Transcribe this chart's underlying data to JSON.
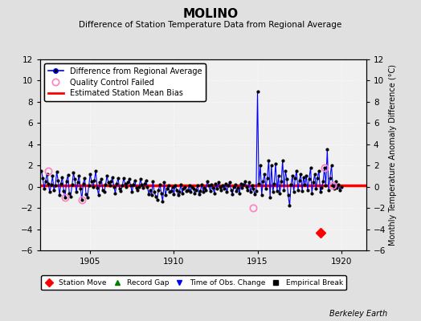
{
  "title": "MOLINO",
  "subtitle": "Difference of Station Temperature Data from Regional Average",
  "ylabel_right": "Monthly Temperature Anomaly Difference (°C)",
  "xlim": [
    1902.0,
    1921.5
  ],
  "ylim": [
    -6,
    12
  ],
  "yticks": [
    -6,
    -4,
    -2,
    0,
    2,
    4,
    6,
    8,
    10,
    12
  ],
  "xticks": [
    1905,
    1910,
    1915,
    1920
  ],
  "bias_line_y": 0.1,
  "station_move_x": 1918.75,
  "station_move_y": -4.3,
  "quality_control_failed": [
    [
      1902.5,
      1.5
    ],
    [
      1903.5,
      -1.0
    ],
    [
      1904.5,
      -1.2
    ],
    [
      1914.75,
      -2.0
    ],
    [
      1919.0,
      1.8
    ],
    [
      1919.5,
      0.1
    ]
  ],
  "time_series_x": [
    1902.08,
    1902.17,
    1902.25,
    1902.33,
    1902.42,
    1902.5,
    1902.58,
    1902.67,
    1902.75,
    1902.83,
    1902.92,
    1903.0,
    1903.08,
    1903.17,
    1903.25,
    1903.33,
    1903.42,
    1903.5,
    1903.58,
    1903.67,
    1903.75,
    1903.83,
    1903.92,
    1904.0,
    1904.08,
    1904.17,
    1904.25,
    1904.33,
    1904.42,
    1904.5,
    1904.58,
    1904.67,
    1904.75,
    1904.83,
    1904.92,
    1905.0,
    1905.08,
    1905.17,
    1905.25,
    1905.33,
    1905.42,
    1905.5,
    1905.58,
    1905.67,
    1905.75,
    1905.83,
    1905.92,
    1906.0,
    1906.08,
    1906.17,
    1906.25,
    1906.33,
    1906.42,
    1906.5,
    1906.58,
    1906.67,
    1906.75,
    1906.83,
    1906.92,
    1907.0,
    1907.08,
    1907.17,
    1907.25,
    1907.33,
    1907.42,
    1907.5,
    1907.58,
    1907.67,
    1907.75,
    1907.83,
    1907.92,
    1908.0,
    1908.08,
    1908.17,
    1908.25,
    1908.33,
    1908.42,
    1908.5,
    1908.58,
    1908.67,
    1908.75,
    1908.83,
    1908.92,
    1909.0,
    1909.08,
    1909.17,
    1909.25,
    1909.33,
    1909.42,
    1909.5,
    1909.58,
    1909.67,
    1909.75,
    1909.83,
    1909.92,
    1910.0,
    1910.08,
    1910.17,
    1910.25,
    1910.33,
    1910.42,
    1910.5,
    1910.58,
    1910.67,
    1910.75,
    1910.83,
    1910.92,
    1911.0,
    1911.08,
    1911.17,
    1911.25,
    1911.33,
    1911.42,
    1911.5,
    1911.58,
    1911.67,
    1911.75,
    1911.83,
    1911.92,
    1912.0,
    1912.08,
    1912.17,
    1912.25,
    1912.33,
    1912.42,
    1912.5,
    1912.58,
    1912.67,
    1912.75,
    1912.83,
    1912.92,
    1913.0,
    1913.08,
    1913.17,
    1913.25,
    1913.33,
    1913.42,
    1913.5,
    1913.58,
    1913.67,
    1913.75,
    1913.83,
    1913.92,
    1914.0,
    1914.08,
    1914.17,
    1914.25,
    1914.33,
    1914.42,
    1914.5,
    1914.58,
    1914.67,
    1914.75,
    1914.83,
    1914.92,
    1915.0,
    1915.08,
    1915.17,
    1915.25,
    1915.33,
    1915.42,
    1915.5,
    1915.58,
    1915.67,
    1915.75,
    1915.83,
    1915.92,
    1916.0,
    1916.08,
    1916.17,
    1916.25,
    1916.33,
    1916.42,
    1916.5,
    1916.58,
    1916.67,
    1916.75,
    1916.83,
    1916.92,
    1917.0,
    1917.08,
    1917.17,
    1917.25,
    1917.33,
    1917.42,
    1917.5,
    1917.58,
    1917.67,
    1917.75,
    1917.83,
    1917.92,
    1918.0,
    1918.08,
    1918.17,
    1918.25,
    1918.33,
    1918.42,
    1918.5,
    1918.58,
    1918.67,
    1918.75,
    1918.83,
    1918.92,
    1919.0,
    1919.08,
    1919.17,
    1919.25,
    1919.33,
    1919.42,
    1919.5,
    1919.58,
    1919.67,
    1919.75,
    1919.83,
    1919.92,
    1920.0
  ],
  "time_series_y": [
    1.5,
    0.8,
    -0.2,
    0.5,
    1.2,
    0.3,
    -0.5,
    0.2,
    1.0,
    -0.3,
    0.1,
    1.4,
    0.6,
    -0.8,
    0.3,
    0.9,
    -0.4,
    -1.0,
    0.5,
    1.1,
    -0.6,
    -0.9,
    0.2,
    1.3,
    0.7,
    -0.5,
    0.4,
    1.0,
    -0.2,
    -1.2,
    0.3,
    0.8,
    -0.7,
    -1.0,
    0.1,
    1.2,
    0.5,
    0.0,
    0.6,
    1.5,
    -0.1,
    -0.8,
    0.4,
    0.7,
    -0.3,
    -0.5,
    0.2,
    1.0,
    0.4,
    0.1,
    0.5,
    0.9,
    0.0,
    -0.6,
    0.3,
    0.8,
    -0.2,
    -0.4,
    0.1,
    0.8,
    0.3,
    0.0,
    0.4,
    0.7,
    0.1,
    -0.5,
    0.2,
    0.6,
    -0.1,
    -0.3,
    0.0,
    0.7,
    0.2,
    -0.1,
    0.3,
    0.6,
    0.0,
    -0.7,
    -0.3,
    -0.8,
    0.5,
    -0.5,
    -0.9,
    -1.2,
    -0.3,
    0.2,
    -0.6,
    -1.4,
    0.4,
    -0.8,
    -0.2,
    0.1,
    -0.5,
    -0.4,
    0.0,
    -0.7,
    0.1,
    -0.3,
    -0.8,
    -0.5,
    0.2,
    -0.6,
    -0.2,
    0.0,
    -0.4,
    -0.3,
    0.1,
    -0.5,
    0.0,
    -0.2,
    -0.6,
    -0.3,
    0.1,
    -0.7,
    -0.4,
    0.2,
    -0.5,
    -0.1,
    -0.3,
    0.5,
    0.1,
    -0.4,
    0.2,
    -0.1,
    -0.6,
    0.3,
    -0.2,
    0.4,
    0.0,
    -0.3,
    0.1,
    -0.2,
    0.3,
    -0.5,
    0.1,
    0.4,
    -0.3,
    -0.7,
    0.0,
    0.2,
    -0.4,
    -0.1,
    -0.6,
    0.3,
    -0.1,
    0.2,
    0.5,
    0.0,
    -0.3,
    0.4,
    -0.5,
    0.1,
    -0.2,
    -0.7,
    -0.4,
    9.0,
    0.3,
    2.0,
    -0.8,
    0.5,
    1.2,
    -0.2,
    0.8,
    2.5,
    -1.0,
    2.0,
    -0.5,
    0.3,
    2.2,
    -0.4,
    1.0,
    -0.6,
    0.5,
    2.5,
    -0.3,
    1.5,
    0.7,
    -0.8,
    -1.8,
    0.2,
    1.0,
    -0.5,
    0.8,
    1.5,
    -0.3,
    0.6,
    1.2,
    -0.4,
    0.9,
    0.2,
    1.0,
    -0.3,
    0.7,
    1.8,
    -0.6,
    0.4,
    1.2,
    -0.2,
    0.8,
    1.5,
    -0.5,
    -0.1,
    0.5,
    1.8,
    0.1,
    3.5,
    -0.3,
    0.8,
    2.0,
    0.1,
    -0.2,
    0.5,
    -0.1,
    0.2,
    -0.3,
    0.0
  ],
  "colors": {
    "line": "#0000ff",
    "marker": "#000000",
    "bias": "#ff0000",
    "qc_failed": "#ff80c0",
    "station_move": "#ff0000",
    "background": "#e0e0e0",
    "plot_bg": "#f0f0f0",
    "grid": "#ffffff"
  }
}
